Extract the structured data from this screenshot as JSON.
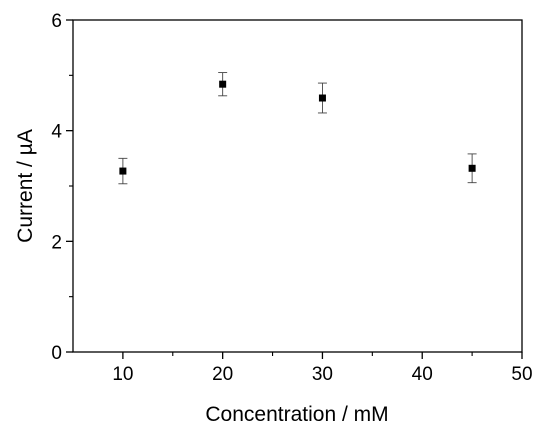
{
  "chart_data": {
    "type": "scatter",
    "title": "",
    "xlabel": "Concentration / mM",
    "ylabel": "Current / µA",
    "xlim": [
      5,
      50
    ],
    "ylim": [
      0,
      6
    ],
    "x_ticks": [
      10,
      20,
      30,
      40,
      50
    ],
    "x_tick_labels": [
      "10",
      "20",
      "30",
      "40",
      "50"
    ],
    "y_ticks": [
      0,
      2,
      4,
      6
    ],
    "y_tick_labels": [
      "0",
      "2",
      "4",
      "6"
    ],
    "grid": false,
    "legend": "none",
    "marker": "square",
    "marker_color": "#000000",
    "series": [
      {
        "x": [
          10,
          20,
          30,
          45
        ],
        "y": [
          3.27,
          4.84,
          4.59,
          3.32
        ],
        "yerr": [
          0.23,
          0.21,
          0.27,
          0.26
        ]
      }
    ]
  }
}
